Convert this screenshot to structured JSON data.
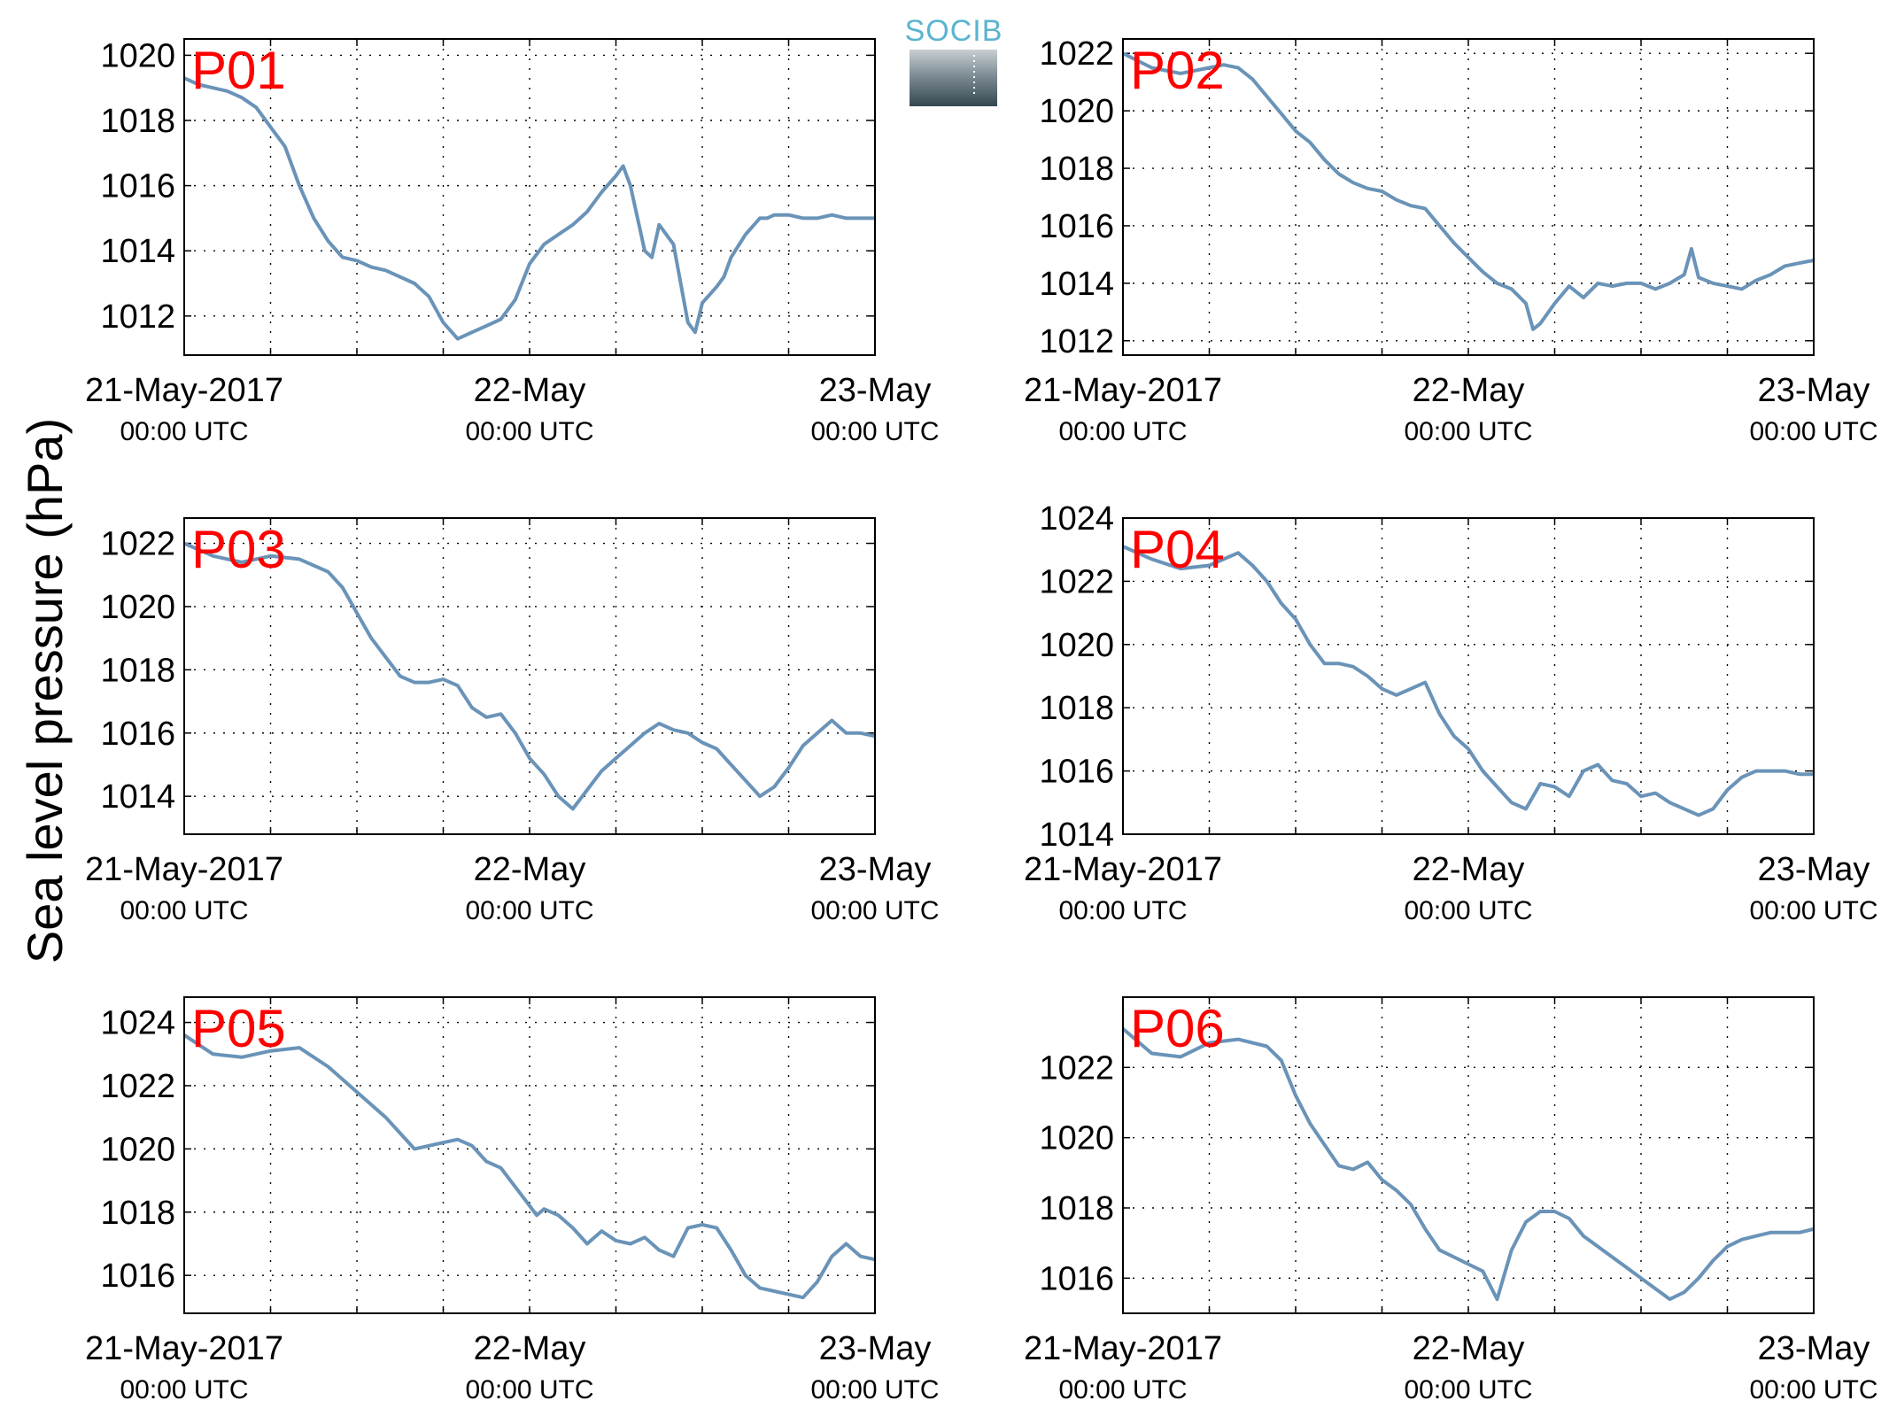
{
  "figure": {
    "ylabel": "Sea level pressure (hPa)",
    "logo_text": "SOCIB",
    "colors": {
      "line": "#6a93b8",
      "station_label": "#ff0000",
      "logo_text": "#5ab4cf",
      "logo_bottom": "#33474f"
    }
  },
  "chart_data": [
    {
      "type": "line",
      "title": "P01",
      "xlabel": "",
      "ylabel": "Sea level pressure (hPa)",
      "x_unit": "hours since 21-May-2017 00:00 UTC",
      "xlim": [
        0,
        48
      ],
      "ylim": [
        1010.8,
        1020.5
      ],
      "yticks": [
        1012,
        1014,
        1016,
        1018,
        1020
      ],
      "xtick_dates": [
        "21-May-2017",
        "22-May",
        "23-May"
      ],
      "xtick_times": [
        "00:00 UTC",
        "00:00 UTC",
        "00:00 UTC"
      ],
      "grid": true,
      "series": [
        {
          "x": [
            0,
            1,
            2,
            3,
            4,
            5,
            6,
            7,
            8,
            9,
            10,
            11,
            12,
            13,
            14,
            15,
            16,
            17,
            18,
            19,
            20,
            21,
            22,
            23,
            24,
            25,
            26,
            27,
            28,
            29,
            30,
            30.5,
            31,
            32,
            32.5,
            33,
            34,
            35,
            35.5,
            36,
            37,
            37.5,
            38,
            39,
            40,
            40.5,
            41,
            42,
            43,
            44,
            45,
            46,
            47,
            48
          ],
          "y": [
            1019.3,
            1019.1,
            1019.0,
            1018.9,
            1018.7,
            1018.4,
            1017.8,
            1017.2,
            1016.0,
            1015.0,
            1014.3,
            1013.8,
            1013.7,
            1013.5,
            1013.4,
            1013.2,
            1013.0,
            1012.6,
            1011.8,
            1011.3,
            1011.5,
            1011.7,
            1011.9,
            1012.5,
            1013.6,
            1014.2,
            1014.5,
            1014.8,
            1015.2,
            1015.8,
            1016.3,
            1016.6,
            1016.0,
            1014.0,
            1013.8,
            1014.8,
            1014.2,
            1011.8,
            1011.5,
            1012.4,
            1012.9,
            1013.2,
            1013.8,
            1014.5,
            1015.0,
            1015.0,
            1015.1,
            1015.1,
            1015.0,
            1015.0,
            1015.1,
            1015.0,
            1015.0,
            1015.0
          ]
        }
      ]
    },
    {
      "type": "line",
      "title": "P02",
      "xlabel": "",
      "ylabel": "Sea level pressure (hPa)",
      "x_unit": "hours since 21-May-2017 00:00 UTC",
      "xlim": [
        0,
        48
      ],
      "ylim": [
        1011.5,
        1022.5
      ],
      "yticks": [
        1012,
        1014,
        1016,
        1018,
        1020,
        1022
      ],
      "xtick_dates": [
        "21-May-2017",
        "22-May",
        "23-May"
      ],
      "xtick_times": [
        "00:00 UTC",
        "00:00 UTC",
        "00:00 UTC"
      ],
      "grid": true,
      "series": [
        {
          "x": [
            0,
            2,
            4,
            6,
            7,
            8,
            9,
            10,
            11,
            12,
            13,
            14,
            15,
            16,
            17,
            18,
            19,
            20,
            21,
            22,
            23,
            24,
            25,
            26,
            27,
            28,
            28.5,
            29,
            30,
            31,
            32,
            33,
            34,
            35,
            36,
            37,
            38,
            39,
            39.5,
            40,
            41,
            42,
            43,
            44,
            45,
            46,
            47,
            48
          ],
          "y": [
            1022.0,
            1021.5,
            1021.3,
            1021.5,
            1021.6,
            1021.5,
            1021.1,
            1020.5,
            1019.9,
            1019.3,
            1018.9,
            1018.3,
            1017.8,
            1017.5,
            1017.3,
            1017.2,
            1016.9,
            1016.7,
            1016.6,
            1016.0,
            1015.4,
            1014.9,
            1014.4,
            1014.0,
            1013.8,
            1013.3,
            1012.4,
            1012.6,
            1013.3,
            1013.9,
            1013.5,
            1014.0,
            1013.9,
            1014.0,
            1014.0,
            1013.8,
            1014.0,
            1014.3,
            1015.2,
            1014.2,
            1014.0,
            1013.9,
            1013.8,
            1014.1,
            1014.3,
            1014.6,
            1014.7,
            1014.8
          ]
        }
      ]
    },
    {
      "type": "line",
      "title": "P03",
      "xlabel": "",
      "ylabel": "Sea level pressure (hPa)",
      "x_unit": "hours since 21-May-2017 00:00 UTC",
      "xlim": [
        0,
        48
      ],
      "ylim": [
        1012.8,
        1022.8
      ],
      "yticks": [
        1014,
        1016,
        1018,
        1020,
        1022
      ],
      "xtick_dates": [
        "21-May-2017",
        "22-May",
        "23-May"
      ],
      "xtick_times": [
        "00:00 UTC",
        "00:00 UTC",
        "00:00 UTC"
      ],
      "grid": true,
      "series": [
        {
          "x": [
            0,
            2,
            4,
            6,
            8,
            10,
            11,
            12,
            13,
            14,
            15,
            16,
            17,
            18,
            19,
            20,
            21,
            22,
            23,
            24,
            25,
            26,
            27,
            28,
            29,
            30,
            31,
            32,
            33,
            34,
            35,
            36,
            37,
            38,
            39,
            40,
            41,
            42,
            43,
            44,
            45,
            46,
            47,
            48
          ],
          "y": [
            1022.0,
            1021.6,
            1021.4,
            1021.6,
            1021.5,
            1021.1,
            1020.6,
            1019.8,
            1019.0,
            1018.4,
            1017.8,
            1017.6,
            1017.6,
            1017.7,
            1017.5,
            1016.8,
            1016.5,
            1016.6,
            1016.0,
            1015.2,
            1014.7,
            1014.0,
            1013.6,
            1014.2,
            1014.8,
            1015.2,
            1015.6,
            1016.0,
            1016.3,
            1016.1,
            1016.0,
            1015.7,
            1015.5,
            1015.0,
            1014.5,
            1014.0,
            1014.3,
            1014.9,
            1015.6,
            1016.0,
            1016.4,
            1016.0,
            1016.0,
            1015.9
          ]
        }
      ]
    },
    {
      "type": "line",
      "title": "P04",
      "xlabel": "",
      "ylabel": "Sea level pressure (hPa)",
      "x_unit": "hours since 21-May-2017 00:00 UTC",
      "xlim": [
        0,
        48
      ],
      "ylim": [
        1014,
        1024
      ],
      "yticks": [
        1014,
        1016,
        1018,
        1020,
        1022,
        1024
      ],
      "xtick_dates": [
        "21-May-2017",
        "22-May",
        "23-May"
      ],
      "xtick_times": [
        "00:00 UTC",
        "00:00 UTC",
        "00:00 UTC"
      ],
      "grid": true,
      "series": [
        {
          "x": [
            0,
            2,
            4,
            6,
            8,
            9,
            10,
            11,
            12,
            13,
            14,
            15,
            16,
            17,
            18,
            19,
            20,
            21,
            22,
            23,
            24,
            25,
            26,
            27,
            28,
            29,
            30,
            31,
            32,
            33,
            34,
            35,
            36,
            37,
            38,
            39,
            40,
            41,
            42,
            43,
            44,
            45,
            46,
            47,
            48
          ],
          "y": [
            1023.1,
            1022.7,
            1022.4,
            1022.5,
            1022.9,
            1022.5,
            1022.0,
            1021.3,
            1020.8,
            1020.0,
            1019.4,
            1019.4,
            1019.3,
            1019.0,
            1018.6,
            1018.4,
            1018.6,
            1018.8,
            1017.8,
            1017.1,
            1016.7,
            1016.0,
            1015.5,
            1015.0,
            1014.8,
            1015.6,
            1015.5,
            1015.2,
            1016.0,
            1016.2,
            1015.7,
            1015.6,
            1015.2,
            1015.3,
            1015.0,
            1014.8,
            1014.6,
            1014.8,
            1015.4,
            1015.8,
            1016.0,
            1016.0,
            1016.0,
            1015.9,
            1015.9
          ]
        }
      ]
    },
    {
      "type": "line",
      "title": "P05",
      "xlabel": "",
      "ylabel": "Sea level pressure (hPa)",
      "x_unit": "hours since 21-May-2017 00:00 UTC",
      "xlim": [
        0,
        48
      ],
      "ylim": [
        1014.8,
        1024.8
      ],
      "yticks": [
        1016,
        1018,
        1020,
        1022,
        1024
      ],
      "xtick_dates": [
        "21-May-2017",
        "22-May",
        "23-May"
      ],
      "xtick_times": [
        "00:00 UTC",
        "00:00 UTC",
        "00:00 UTC"
      ],
      "grid": true,
      "series": [
        {
          "x": [
            0,
            2,
            4,
            6,
            8,
            10,
            12,
            14,
            16,
            18,
            19,
            20,
            21,
            22,
            23,
            24,
            24.5,
            25,
            26,
            27,
            28,
            29,
            30,
            31,
            32,
            33,
            34,
            35,
            36,
            37,
            38,
            39,
            40,
            41,
            42,
            43,
            44,
            45,
            46,
            47,
            48
          ],
          "y": [
            1023.6,
            1023.0,
            1022.9,
            1023.1,
            1023.2,
            1022.6,
            1021.8,
            1021.0,
            1020.0,
            1020.2,
            1020.3,
            1020.1,
            1019.6,
            1019.4,
            1018.8,
            1018.2,
            1017.9,
            1018.1,
            1017.9,
            1017.5,
            1017.0,
            1017.4,
            1017.1,
            1017.0,
            1017.2,
            1016.8,
            1016.6,
            1017.5,
            1017.6,
            1017.5,
            1016.8,
            1016.0,
            1015.6,
            1015.5,
            1015.4,
            1015.3,
            1015.8,
            1016.6,
            1017.0,
            1016.6,
            1016.5
          ]
        }
      ]
    },
    {
      "type": "line",
      "title": "P06",
      "xlabel": "",
      "ylabel": "Sea level pressure (hPa)",
      "x_unit": "hours since 21-May-2017 00:00 UTC",
      "xlim": [
        0,
        48
      ],
      "ylim": [
        1015,
        1024
      ],
      "yticks": [
        1016,
        1018,
        1020,
        1022
      ],
      "xtick_dates": [
        "21-May-2017",
        "22-May",
        "23-May"
      ],
      "xtick_times": [
        "00:00 UTC",
        "00:00 UTC",
        "00:00 UTC"
      ],
      "grid": true,
      "series": [
        {
          "x": [
            0,
            2,
            4,
            6,
            8,
            10,
            11,
            12,
            13,
            14,
            15,
            16,
            17,
            18,
            19,
            20,
            21,
            22,
            23,
            24,
            25,
            26,
            27,
            28,
            29,
            30,
            31,
            32,
            33,
            34,
            35,
            36,
            37,
            38,
            39,
            40,
            41,
            42,
            43,
            44,
            45,
            46,
            47,
            48
          ],
          "y": [
            1023.1,
            1022.4,
            1022.3,
            1022.7,
            1022.8,
            1022.6,
            1022.2,
            1021.2,
            1020.4,
            1019.8,
            1019.2,
            1019.1,
            1019.3,
            1018.8,
            1018.5,
            1018.1,
            1017.4,
            1016.8,
            1016.6,
            1016.4,
            1016.2,
            1015.4,
            1016.8,
            1017.6,
            1017.9,
            1017.9,
            1017.7,
            1017.2,
            1016.9,
            1016.6,
            1016.3,
            1016.0,
            1015.7,
            1015.4,
            1015.6,
            1016.0,
            1016.5,
            1016.9,
            1017.1,
            1017.2,
            1017.3,
            1017.3,
            1017.3,
            1017.4
          ]
        }
      ]
    }
  ]
}
